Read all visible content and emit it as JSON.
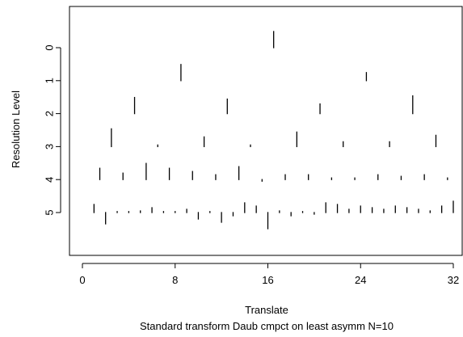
{
  "chart_data": {
    "type": "scatter",
    "subtype": "wavelet-coefficient-spikes",
    "xlabel": "Translate",
    "ylabel": "Resolution Level",
    "subtitle": "Standard transform Daub cmpct on least asymm N=10",
    "xlim": [
      0,
      32
    ],
    "ylim": [
      0,
      5
    ],
    "x_ticks": [
      "0",
      "8",
      "16",
      "24",
      "32"
    ],
    "y_ticks": [
      "0",
      "1",
      "2",
      "3",
      "4",
      "5"
    ],
    "line_color": "#000000",
    "levels": [
      {
        "level": 0,
        "coefficients": [
          {
            "x": 16.5,
            "value": 0.5
          }
        ]
      },
      {
        "level": 1,
        "coefficients": [
          {
            "x": 8.5,
            "value": 0.5
          },
          {
            "x": 24.5,
            "value": 0.25
          }
        ]
      },
      {
        "level": 2,
        "coefficients": [
          {
            "x": 4.5,
            "value": 0.5
          },
          {
            "x": 12.5,
            "value": 0.45
          },
          {
            "x": 20.5,
            "value": 0.3
          },
          {
            "x": 28.5,
            "value": 0.55
          }
        ]
      },
      {
        "level": 3,
        "coefficients": [
          {
            "x": 2.5,
            "value": 0.55
          },
          {
            "x": 6.5,
            "value": 0.05
          },
          {
            "x": 10.5,
            "value": 0.3
          },
          {
            "x": 14.5,
            "value": 0.05
          },
          {
            "x": 18.5,
            "value": 0.45
          },
          {
            "x": 22.5,
            "value": 0.15
          },
          {
            "x": 26.5,
            "value": 0.15
          },
          {
            "x": 30.5,
            "value": 0.35
          }
        ]
      },
      {
        "level": 4,
        "coefficients": [
          {
            "x": 1.5,
            "value": 0.35
          },
          {
            "x": 3.5,
            "value": 0.2
          },
          {
            "x": 5.5,
            "value": 0.5
          },
          {
            "x": 7.5,
            "value": 0.35
          },
          {
            "x": 9.5,
            "value": 0.25
          },
          {
            "x": 11.5,
            "value": 0.15
          },
          {
            "x": 13.5,
            "value": 0.4
          },
          {
            "x": 15.5,
            "value": -0.05
          },
          {
            "x": 17.5,
            "value": 0.15
          },
          {
            "x": 19.5,
            "value": 0.15
          },
          {
            "x": 21.5,
            "value": 0.05
          },
          {
            "x": 23.5,
            "value": 0.05
          },
          {
            "x": 25.5,
            "value": 0.15
          },
          {
            "x": 27.5,
            "value": 0.1
          },
          {
            "x": 29.5,
            "value": 0.15
          },
          {
            "x": 31.5,
            "value": 0.05
          }
        ]
      },
      {
        "level": 5,
        "coefficients": [
          {
            "x": 1,
            "value": 0.25
          },
          {
            "x": 2,
            "value": -0.35
          },
          {
            "x": 3,
            "value": 0.03
          },
          {
            "x": 4,
            "value": 0.03
          },
          {
            "x": 5,
            "value": 0.05
          },
          {
            "x": 6,
            "value": 0.15
          },
          {
            "x": 7,
            "value": 0.03
          },
          {
            "x": 8,
            "value": 0.03
          },
          {
            "x": 9,
            "value": 0.1
          },
          {
            "x": 10,
            "value": -0.2
          },
          {
            "x": 11,
            "value": 0.03
          },
          {
            "x": 12,
            "value": -0.3
          },
          {
            "x": 13,
            "value": -0.1
          },
          {
            "x": 14,
            "value": 0.3
          },
          {
            "x": 15,
            "value": 0.2
          },
          {
            "x": 16,
            "value": -0.5
          },
          {
            "x": 17,
            "value": 0.05
          },
          {
            "x": 18,
            "value": -0.1
          },
          {
            "x": 19,
            "value": 0.03
          },
          {
            "x": 20,
            "value": -0.05
          },
          {
            "x": 21,
            "value": 0.3
          },
          {
            "x": 22,
            "value": 0.25
          },
          {
            "x": 23,
            "value": 0.1
          },
          {
            "x": 24,
            "value": 0.2
          },
          {
            "x": 25,
            "value": 0.15
          },
          {
            "x": 26,
            "value": 0.1
          },
          {
            "x": 27,
            "value": 0.2
          },
          {
            "x": 28,
            "value": 0.15
          },
          {
            "x": 29,
            "value": 0.1
          },
          {
            "x": 30,
            "value": 0.05
          },
          {
            "x": 31,
            "value": 0.2
          },
          {
            "x": 32,
            "value": 0.35
          }
        ]
      }
    ]
  }
}
